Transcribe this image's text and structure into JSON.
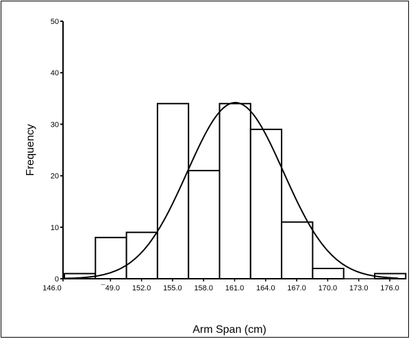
{
  "chart_data": {
    "type": "bar",
    "xlabel": "Arm Span (cm)",
    "ylabel": "Frequency",
    "ylim": [
      0,
      50
    ],
    "xlim": [
      146.0,
      181.0
    ],
    "grid": false,
    "y_ticks": [
      "0",
      "10",
      "20",
      "30",
      "40",
      "50"
    ],
    "x_ticks": [
      "146.0",
      "¯49.0",
      "152.0",
      "155.0",
      "158.0",
      "161.0",
      "164.0",
      "167.0",
      "170.0",
      "173.0",
      "176.0",
      "179.0"
    ],
    "bins": [
      {
        "start": 147.5,
        "end": 151.5,
        "value": 1
      },
      {
        "start": 151.5,
        "end": 155.5,
        "value": 8
      },
      {
        "start": 155.5,
        "end": 159.5,
        "value": 9
      },
      {
        "start": 159.5,
        "end": 163.5,
        "value": 34
      },
      {
        "start": 163.5,
        "end": 167.5,
        "value": 21
      },
      {
        "start": 167.5,
        "end": 171.5,
        "value": 34
      },
      {
        "start": 171.5,
        "end": 175.5,
        "value": 29
      },
      {
        "start": 175.5,
        "end": 179.5,
        "value": 11
      },
      {
        "start": 179.5,
        "end": 183.5,
        "value": 2
      },
      {
        "start": 183.5,
        "end": 187.5,
        "value": 0
      },
      {
        "start": 187.5,
        "end": 191.5,
        "value": 1
      }
    ],
    "normal_curve": {
      "mean": 162.2,
      "peak": 34.2
    }
  }
}
